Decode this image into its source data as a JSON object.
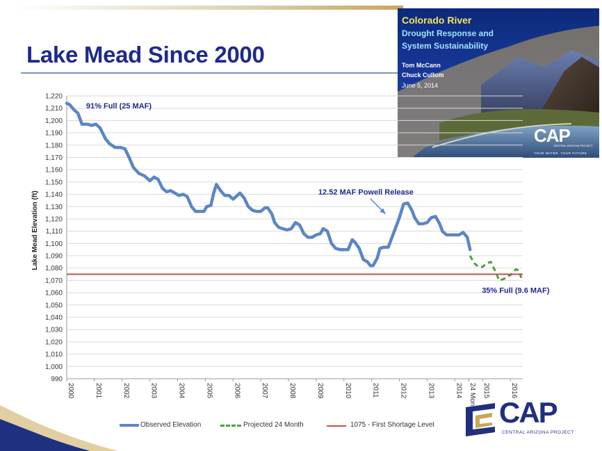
{
  "slide": {
    "title": "Lake Mead Since 2000"
  },
  "cover": {
    "title": "Colorado River",
    "subtitle_line1": "Drought Response and",
    "subtitle_line2": "System Sustainability",
    "author1": "Tom McCann",
    "author2": "Chuck Cullom",
    "date": "June 5, 2014",
    "logo": "CAP",
    "logo_sub": "CENTRAL ARIZONA PROJECT",
    "tagline": "YOUR WATER. YOUR FUTURE."
  },
  "branding": {
    "logo": "CAP",
    "logo_sub": "CENTRAL ARIZONA PROJECT"
  },
  "colors": {
    "title": "#1f2a8a",
    "observed": "#5b86c5",
    "projected": "#4aa23a",
    "shortage": "#c0504d",
    "annotation": "#1f2a8a"
  },
  "chart_data": {
    "type": "line",
    "title": "Lake Mead Since 2000",
    "xlabel": "",
    "ylabel": "Lake Mead Elevation (ft)",
    "ylim": [
      990,
      1220
    ],
    "ytick_step": 10,
    "x_tick_labels": [
      "2000",
      "2001",
      "2002",
      "2003",
      "2004",
      "2005",
      "2006",
      "2007",
      "2008",
      "2009",
      "2010",
      "2011",
      "2012",
      "2013",
      "2014",
      "24 Month",
      "2015",
      "2016"
    ],
    "x_tick_years": [
      2000,
      2001,
      2002,
      2003,
      2004,
      2005,
      2006,
      2007,
      2008,
      2009,
      2010,
      2011,
      2012,
      2013,
      2014,
      2014.5,
      2015,
      2016
    ],
    "x_range": [
      2000,
      2016.45
    ],
    "grid": true,
    "series": [
      {
        "name": "Observed Elevation",
        "style": "solid",
        "points": [
          [
            2000.0,
            1214
          ],
          [
            2000.1,
            1213
          ],
          [
            2000.25,
            1209
          ],
          [
            2000.4,
            1206
          ],
          [
            2000.55,
            1197
          ],
          [
            2000.75,
            1197
          ],
          [
            2000.9,
            1196
          ],
          [
            2001.05,
            1197
          ],
          [
            2001.2,
            1194
          ],
          [
            2001.4,
            1185
          ],
          [
            2001.55,
            1181
          ],
          [
            2001.75,
            1178
          ],
          [
            2001.95,
            1178
          ],
          [
            2002.1,
            1177
          ],
          [
            2002.25,
            1170
          ],
          [
            2002.4,
            1162
          ],
          [
            2002.6,
            1157
          ],
          [
            2002.8,
            1155
          ],
          [
            2003.0,
            1151
          ],
          [
            2003.15,
            1154
          ],
          [
            2003.3,
            1152
          ],
          [
            2003.45,
            1145
          ],
          [
            2003.6,
            1142
          ],
          [
            2003.75,
            1143
          ],
          [
            2003.9,
            1141
          ],
          [
            2004.05,
            1139
          ],
          [
            2004.2,
            1140
          ],
          [
            2004.35,
            1138
          ],
          [
            2004.5,
            1130
          ],
          [
            2004.65,
            1126
          ],
          [
            2004.8,
            1126
          ],
          [
            2004.95,
            1126
          ],
          [
            2005.05,
            1130
          ],
          [
            2005.2,
            1131
          ],
          [
            2005.3,
            1141
          ],
          [
            2005.4,
            1148
          ],
          [
            2005.55,
            1143
          ],
          [
            2005.7,
            1139
          ],
          [
            2005.85,
            1139
          ],
          [
            2006.0,
            1136
          ],
          [
            2006.15,
            1139
          ],
          [
            2006.25,
            1141
          ],
          [
            2006.4,
            1137
          ],
          [
            2006.55,
            1130
          ],
          [
            2006.7,
            1127
          ],
          [
            2006.85,
            1126
          ],
          [
            2007.0,
            1126
          ],
          [
            2007.15,
            1129
          ],
          [
            2007.25,
            1129
          ],
          [
            2007.4,
            1124
          ],
          [
            2007.5,
            1117
          ],
          [
            2007.65,
            1113
          ],
          [
            2007.8,
            1112
          ],
          [
            2007.95,
            1111
          ],
          [
            2008.1,
            1112
          ],
          [
            2008.25,
            1117
          ],
          [
            2008.4,
            1115
          ],
          [
            2008.55,
            1108
          ],
          [
            2008.7,
            1105
          ],
          [
            2008.85,
            1105
          ],
          [
            2009.0,
            1107
          ],
          [
            2009.15,
            1108
          ],
          [
            2009.25,
            1112
          ],
          [
            2009.4,
            1110
          ],
          [
            2009.55,
            1100
          ],
          [
            2009.7,
            1096
          ],
          [
            2009.85,
            1095
          ],
          [
            2010.0,
            1095
          ],
          [
            2010.15,
            1095
          ],
          [
            2010.3,
            1103
          ],
          [
            2010.4,
            1101
          ],
          [
            2010.55,
            1096
          ],
          [
            2010.7,
            1087
          ],
          [
            2010.85,
            1085
          ],
          [
            2010.95,
            1082
          ],
          [
            2011.05,
            1082
          ],
          [
            2011.2,
            1088
          ],
          [
            2011.3,
            1096
          ],
          [
            2011.45,
            1097
          ],
          [
            2011.6,
            1097
          ],
          [
            2011.75,
            1106
          ],
          [
            2011.9,
            1115
          ],
          [
            2012.0,
            1121
          ],
          [
            2012.15,
            1132
          ],
          [
            2012.3,
            1133
          ],
          [
            2012.45,
            1127
          ],
          [
            2012.55,
            1121
          ],
          [
            2012.7,
            1116
          ],
          [
            2012.85,
            1116
          ],
          [
            2013.0,
            1117
          ],
          [
            2013.15,
            1121
          ],
          [
            2013.3,
            1122
          ],
          [
            2013.45,
            1116
          ],
          [
            2013.55,
            1110
          ],
          [
            2013.7,
            1107
          ],
          [
            2013.85,
            1107
          ],
          [
            2014.0,
            1107
          ],
          [
            2014.15,
            1107
          ],
          [
            2014.3,
            1109
          ],
          [
            2014.45,
            1105
          ],
          [
            2014.55,
            1095
          ]
        ]
      },
      {
        "name": "Projected 24 Month",
        "style": "dashed",
        "points": [
          [
            2014.55,
            1090
          ],
          [
            2014.7,
            1084
          ],
          [
            2014.85,
            1081
          ],
          [
            2015.0,
            1081
          ],
          [
            2015.15,
            1084
          ],
          [
            2015.3,
            1085
          ],
          [
            2015.45,
            1078
          ],
          [
            2015.6,
            1070
          ],
          [
            2015.75,
            1071
          ],
          [
            2015.9,
            1073
          ],
          [
            2016.05,
            1075
          ],
          [
            2016.2,
            1079
          ],
          [
            2016.3,
            1078
          ],
          [
            2016.4,
            1072
          ]
        ]
      },
      {
        "name": "1075 - First Shortage Level",
        "style": "solid",
        "points": [
          [
            2000.0,
            1075
          ],
          [
            2016.45,
            1075
          ]
        ]
      }
    ],
    "annotations": [
      {
        "text": "91% Full (25 MAF)",
        "anchor_year": 2000.55,
        "anchor_value": 1212
      },
      {
        "text": "12.52 MAF Powell Release",
        "anchor_year": 2008.95,
        "anchor_value": 1142,
        "arrow_to": [
          2011.5,
          1124
        ]
      },
      {
        "text": "35% Full (9.6 MAF)",
        "anchor_year": 2014.9,
        "anchor_value": 1062
      }
    ],
    "legend": "bottom"
  }
}
